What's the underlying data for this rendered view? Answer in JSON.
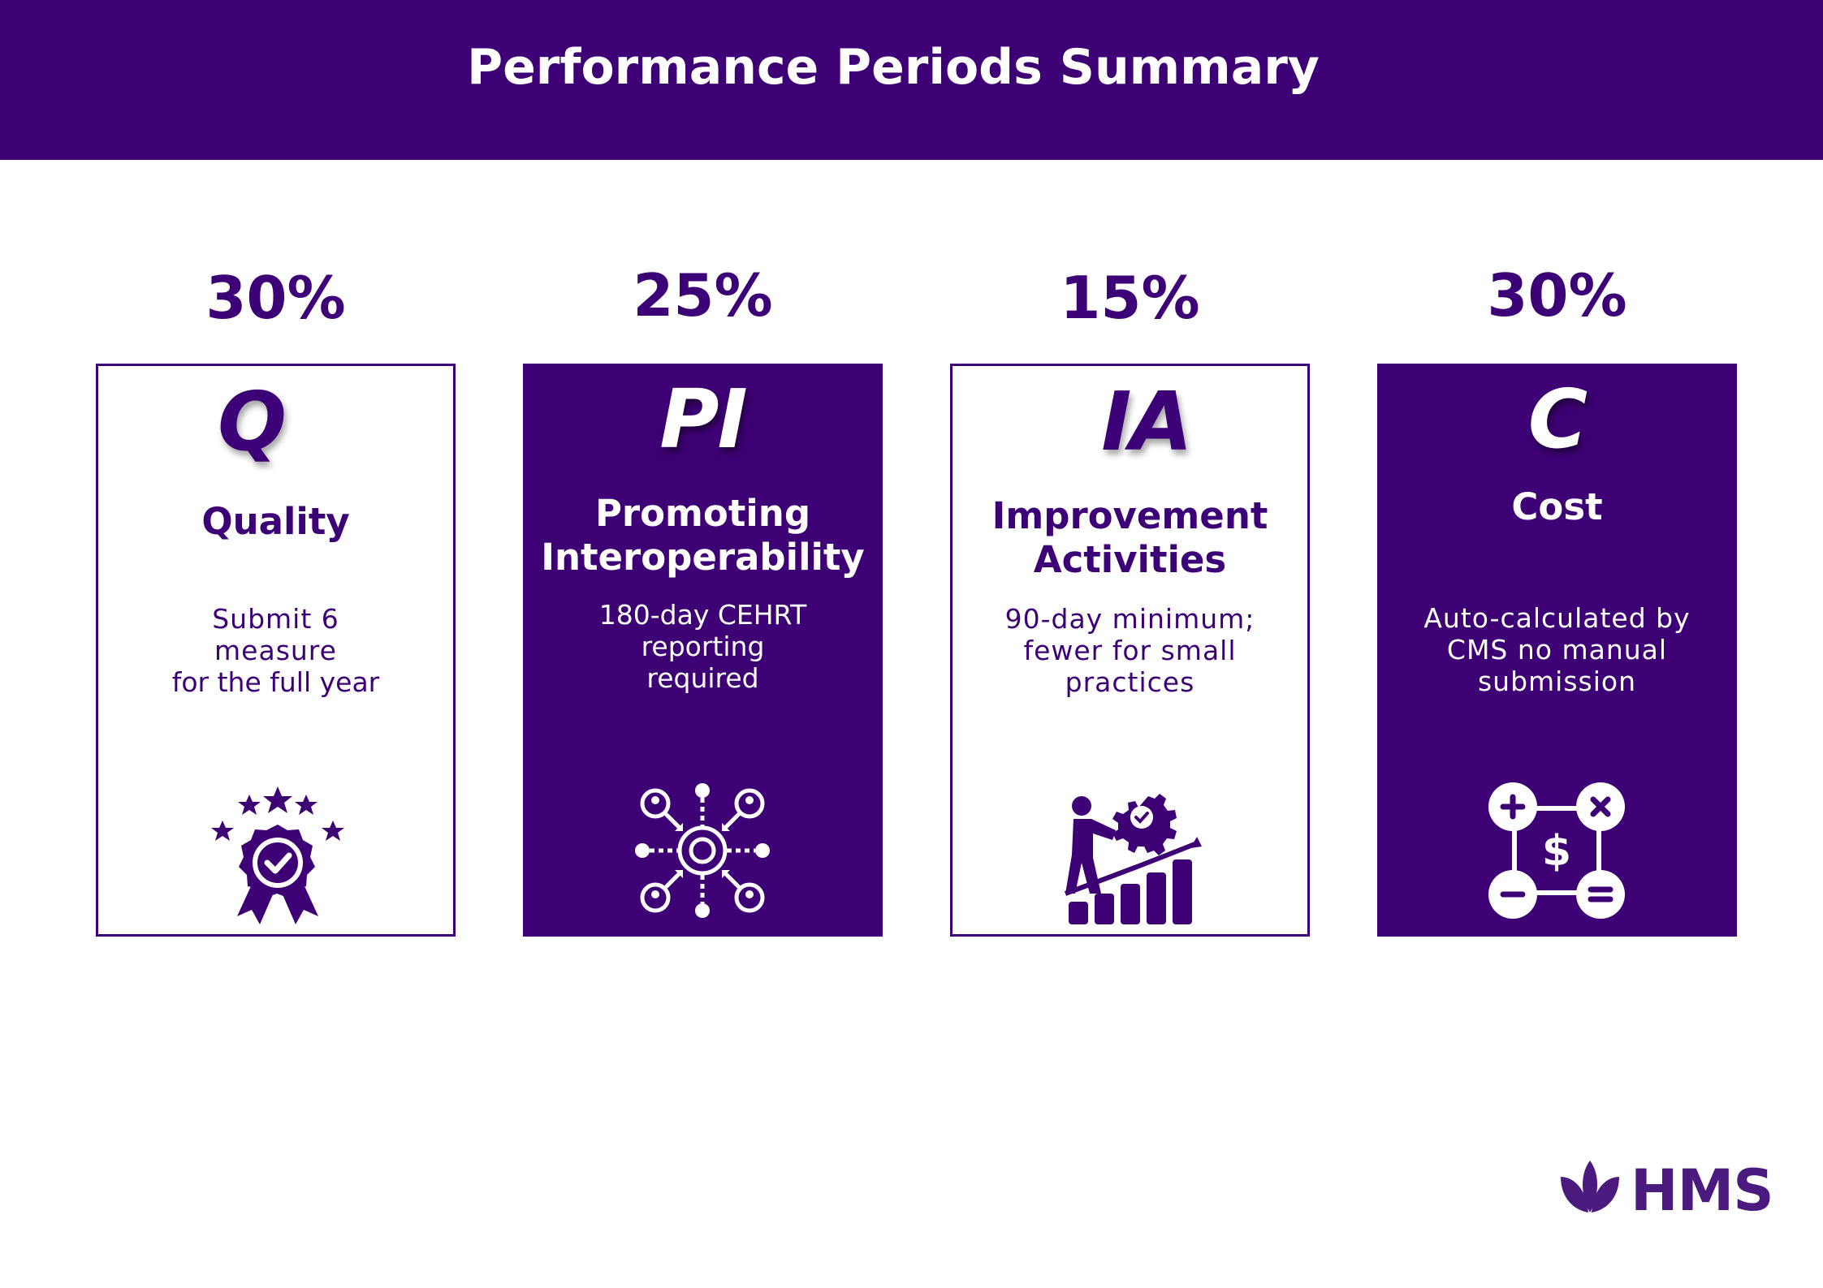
{
  "header": {
    "title": "Performance Periods Summary"
  },
  "cards": [
    {
      "percent": "30%",
      "abbr": "Q",
      "title": "Quality",
      "description": [
        "Submit 6",
        "measure",
        "for the full year"
      ],
      "icon": "award-badge-icon"
    },
    {
      "percent": "25%",
      "abbr": "PI",
      "title": [
        "Promoting",
        "Interoperability"
      ],
      "description": [
        "180-day CEHRT",
        "reporting",
        "required"
      ],
      "icon": "network-gear-icon"
    },
    {
      "percent": "15%",
      "abbr": "IA",
      "title": [
        "Improvement",
        "Activities"
      ],
      "description": [
        "90-day minimum;",
        "fewer for small",
        "practices"
      ],
      "icon": "growth-person-gear-icon"
    },
    {
      "percent": "30%",
      "abbr": "C",
      "title": "Cost",
      "description": [
        "Auto-calculated by",
        "CMS no manual",
        "submission"
      ],
      "icon": "calculator-dollar-icon"
    }
  ],
  "logo": {
    "text": "HMS",
    "icon": "lotus-icon"
  },
  "colors": {
    "primary": "#3e0075",
    "text": "#3c0077",
    "background": "#ffffff"
  }
}
